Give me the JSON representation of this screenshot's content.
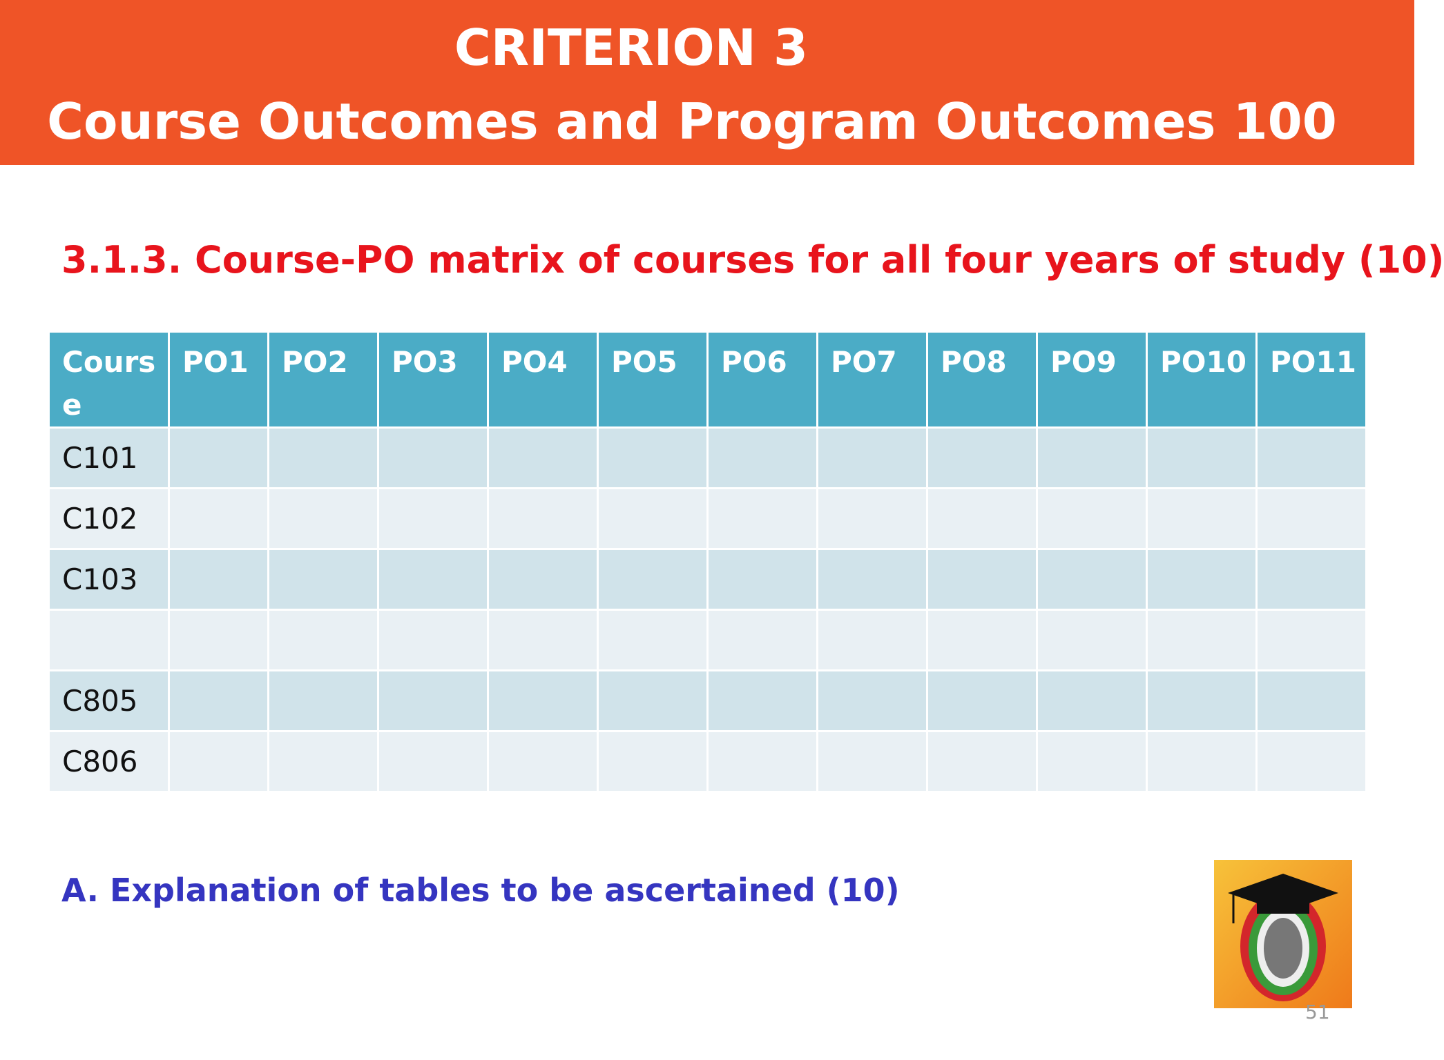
{
  "header": {
    "lines": [
      "CRITERION 3",
      "Course Outcomes and Program Outcomes  100"
    ]
  },
  "subtitle": "3.1.3. Course-PO matrix of courses for all four  years of study (10)",
  "table": {
    "columns": [
      "Course",
      "PO1",
      "PO2",
      "PO3",
      "PO4",
      "PO5",
      "PO6",
      "PO7",
      "PO8",
      "PO9",
      "PO10",
      "PO11"
    ],
    "rows": [
      "C101",
      "C102",
      "C103",
      null,
      "C805",
      "C806"
    ]
  },
  "note": "A. Explanation of tables to be ascertained (10)",
  "page_number": "51"
}
